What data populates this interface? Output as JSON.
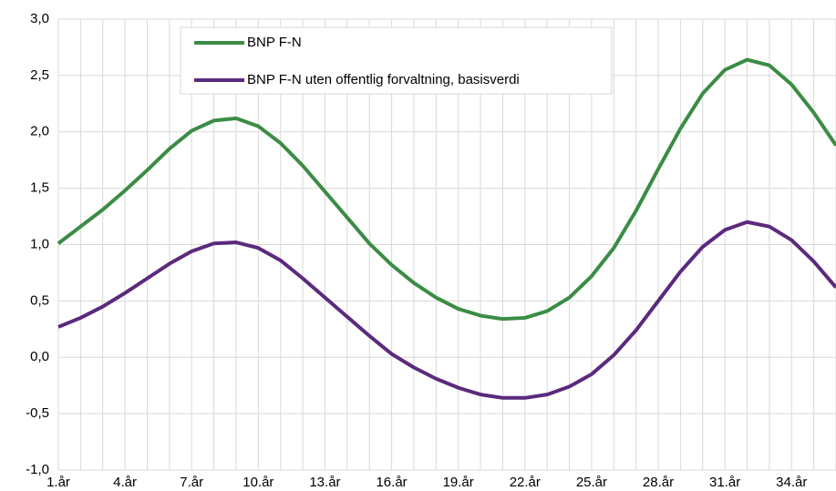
{
  "chart_data": {
    "type": "line",
    "categories": [
      "1.år",
      null,
      null,
      "4.år",
      null,
      null,
      "7.år",
      null,
      null,
      "10.år",
      null,
      null,
      "13.år",
      null,
      null,
      "16.år",
      null,
      null,
      "19.år",
      null,
      null,
      "22.år",
      null,
      null,
      "25.år",
      null,
      null,
      "28.år",
      null,
      null,
      "31.år",
      null,
      null,
      "34.år",
      null,
      null
    ],
    "series": [
      {
        "name": "BNP F-N",
        "color": "#3b8c45",
        "values": [
          1.01,
          1.16,
          1.31,
          1.48,
          1.66,
          1.85,
          2.01,
          2.1,
          2.12,
          2.05,
          1.9,
          1.7,
          1.47,
          1.24,
          1.01,
          0.82,
          0.66,
          0.53,
          0.43,
          0.37,
          0.34,
          0.35,
          0.41,
          0.53,
          0.72,
          0.97,
          1.3,
          1.67,
          2.03,
          2.34,
          2.55,
          2.64,
          2.59,
          2.42,
          2.17,
          1.88
        ]
      },
      {
        "name": "BNP F-N uten offentlig forvaltning, basisverdi",
        "color": "#5b2a7c",
        "values": [
          0.27,
          0.35,
          0.45,
          0.57,
          0.7,
          0.83,
          0.94,
          1.01,
          1.02,
          0.97,
          0.86,
          0.7,
          0.53,
          0.36,
          0.19,
          0.03,
          -0.09,
          -0.19,
          -0.27,
          -0.33,
          -0.36,
          -0.36,
          -0.33,
          -0.26,
          -0.15,
          0.02,
          0.24,
          0.5,
          0.76,
          0.98,
          1.13,
          1.2,
          1.16,
          1.04,
          0.85,
          0.62
        ]
      }
    ],
    "ylim": [
      -1,
      3
    ],
    "yticks": [
      {
        "value": -1,
        "label": "-1,0"
      },
      {
        "value": -0.5,
        "label": "-0,5"
      },
      {
        "value": 0,
        "label": "0,0"
      },
      {
        "value": 0.5,
        "label": "0,5"
      },
      {
        "value": 1,
        "label": "1,0"
      },
      {
        "value": 1.5,
        "label": "1,5"
      },
      {
        "value": 2,
        "label": "2,0"
      },
      {
        "value": 2.5,
        "label": "2,5"
      },
      {
        "value": 3,
        "label": "3,0"
      }
    ],
    "grid": true
  }
}
